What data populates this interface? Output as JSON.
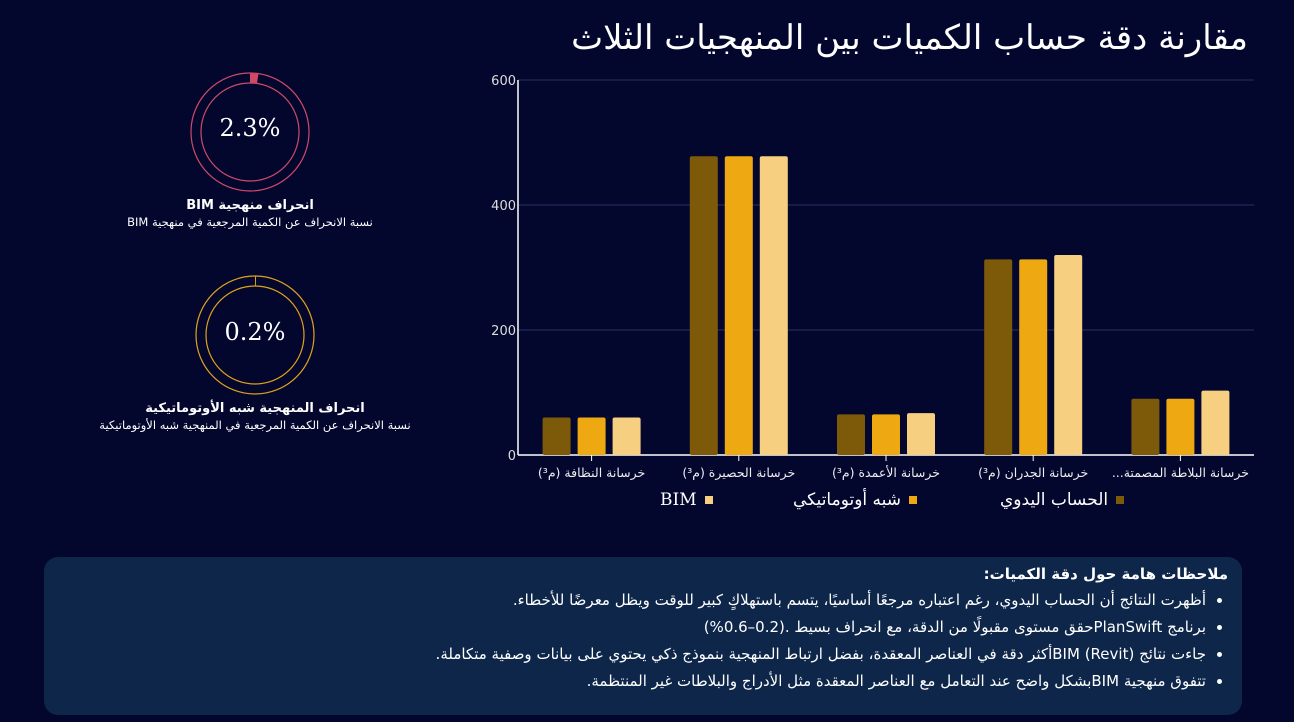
{
  "title": "مقارنة دقة حساب الكميات بين المنهجيات الثلاث",
  "gauges": [
    {
      "value": "2.3%",
      "fraction": 0.023,
      "label": "انحراف منهجية BIM",
      "sub": "نسبة الانحراف عن الكمية المرجعية في منهجية BIM",
      "color": "#d04a68"
    },
    {
      "value": "0.2%",
      "fraction": 0.002,
      "label": "انحراف المنهجية شبه الأوتوماتيكية",
      "sub": "نسبة الانحراف عن الكمية المرجعية في المنهجية شبه الأوتوماتيكية",
      "color": "#e0a21a"
    }
  ],
  "chart_data": {
    "type": "bar",
    "categories": [
      "خرسانة النظافة (م³)",
      "خرسانة الحصيرة (م³)",
      "خرسانة الأعمدة (م³)",
      "خرسانة الجدران (م³)",
      "خرسانة البلاطة المصمتة..."
    ],
    "series": [
      {
        "name": "الحساب اليدوي",
        "values": [
          60,
          478,
          65,
          313,
          90
        ],
        "color": "#7d5a0a"
      },
      {
        "name": "شبه أوتوماتيكي",
        "values": [
          60,
          478,
          65,
          313,
          90
        ],
        "color": "#eea812"
      },
      {
        "name": "BIM",
        "values": [
          60,
          478,
          67,
          320,
          103
        ],
        "color": "#f7cf80"
      }
    ],
    "yticks": [
      "0",
      "200",
      "400",
      "600"
    ],
    "ylim": [
      0,
      600
    ],
    "grid": true,
    "legend": "bottom"
  },
  "notes": {
    "title": "ملاحظات هامة حول دقة الكميات:",
    "items": [
      "أظهرت النتائج أن الحساب اليدوي، رغم اعتباره مرجعًا أساسيًا، يتسم باستهلاكٍ كبير للوقت ويظل معرضًا للأخطاء.",
      "برنامج  PlanSwiftحقق مستوى مقبولًا من الدقة، مع انحراف بسيط .(0.2–0.6%)",
      "جاءت نتائج  (BIM (Revitأكثر دقة في العناصر المعقدة، بفضل ارتباط المنهجية بنموذج ذكي يحتوي على بيانات وصفية متكاملة.",
      "تتفوق منهجية  BIMبشكل واضح عند التعامل مع العناصر المعقدة مثل الأدراج والبلاطات غير المنتظمة."
    ]
  }
}
